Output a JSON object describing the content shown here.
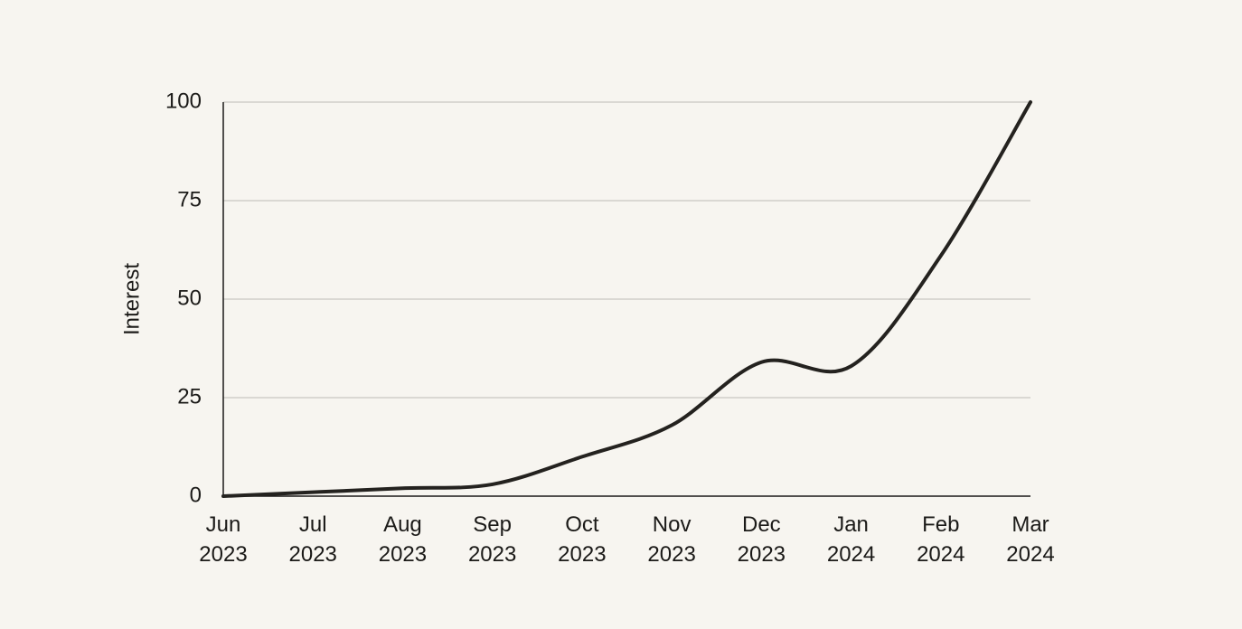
{
  "chart_data": {
    "type": "line",
    "y_label": "Interest",
    "categories": [
      "Jun 2023",
      "Jul 2023",
      "Aug 2023",
      "Sep 2023",
      "Oct 2023",
      "Nov 2023",
      "Dec 2023",
      "Jan 2024",
      "Feb 2024",
      "Mar 2024"
    ],
    "values": [
      0,
      1,
      2,
      3,
      10,
      18,
      34,
      33,
      61,
      100
    ],
    "color": "#24221f",
    "ylim": [
      0,
      100
    ],
    "yticks": [
      0,
      25,
      50,
      75,
      100
    ],
    "grid": true
  }
}
